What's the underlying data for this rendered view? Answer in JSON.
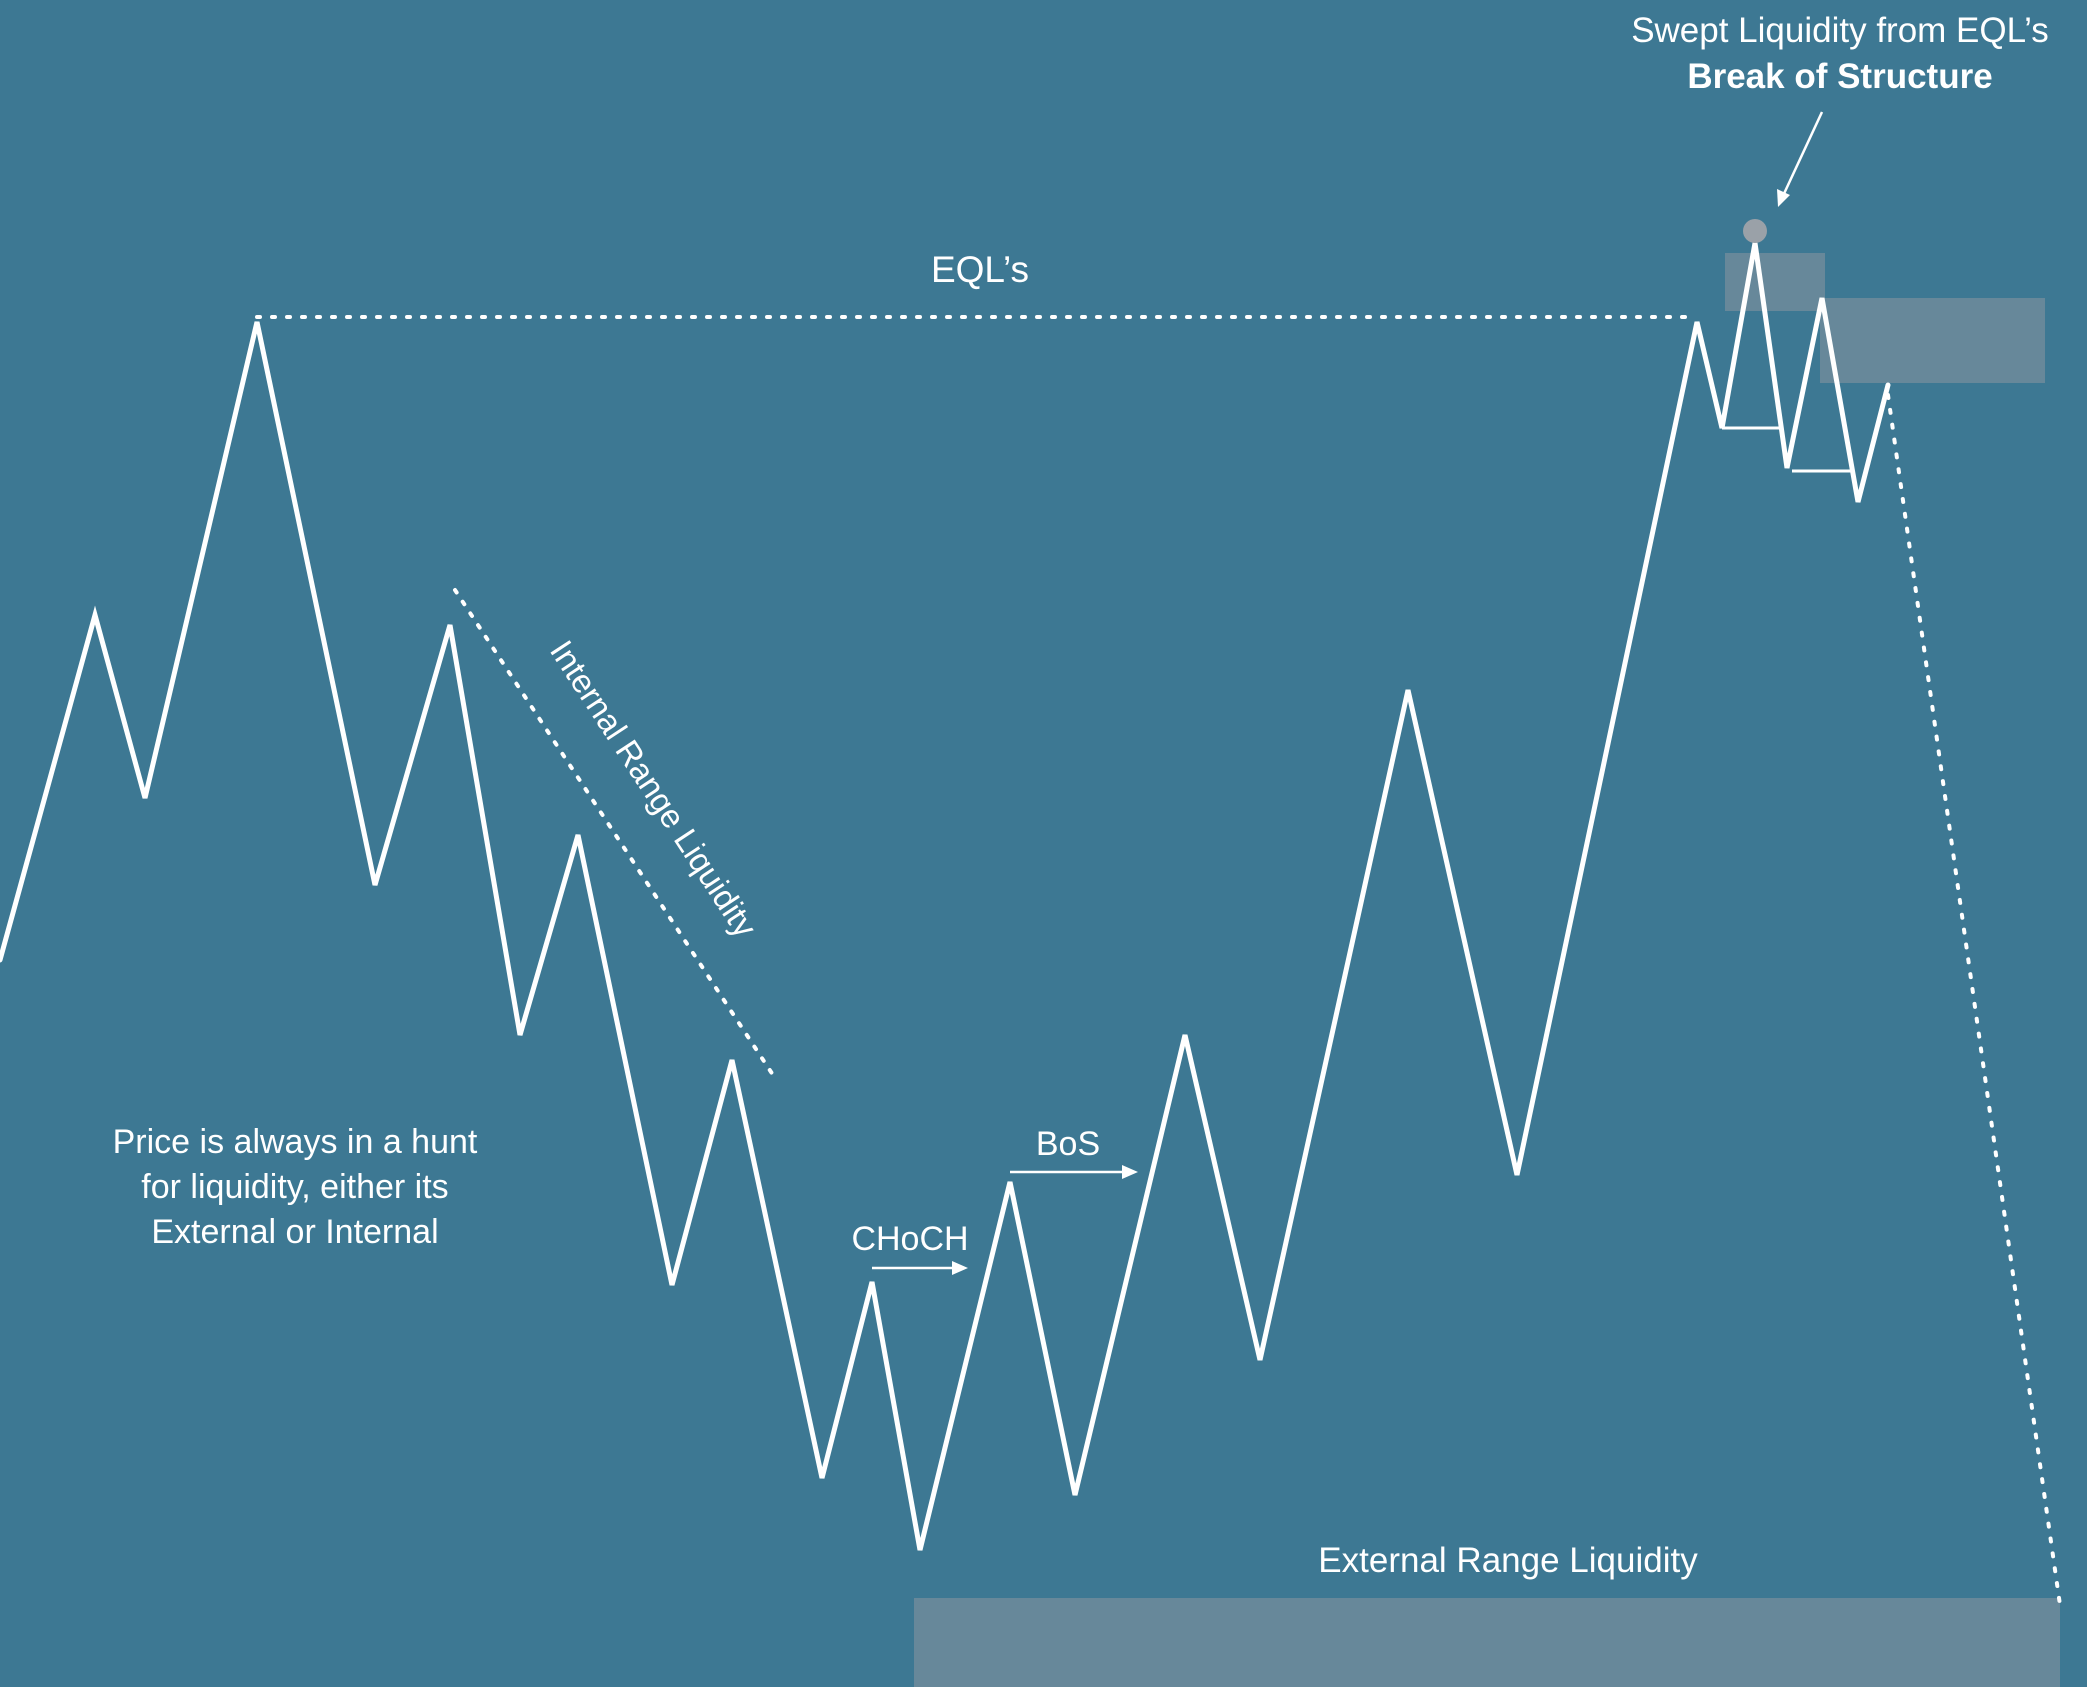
{
  "colors": {
    "background": "#3d7893",
    "price_line": "#ffffff",
    "dotted_line": "#ffffff",
    "zone_fill": "#8a96a0",
    "sweep_dot": "#9aa1a8"
  },
  "labels": {
    "sweep_line1": "Swept Liquidity from EQL’s",
    "sweep_line2": "Break of Structure",
    "eqls": "EQL’s",
    "internal": "Internal Range Liquidity",
    "note_line1": "Price is always in a hunt",
    "note_line2": "for liquidity, either its",
    "note_line3": "External or Internal",
    "choch": "CHoCH",
    "bos": "BoS",
    "external": "External Range Liquidity"
  }
}
